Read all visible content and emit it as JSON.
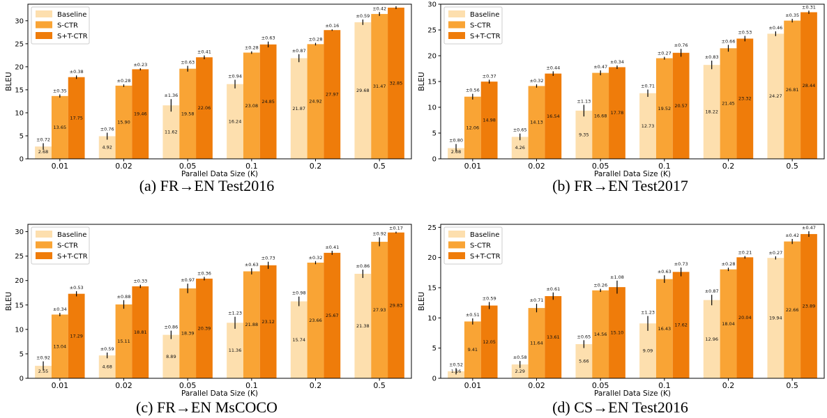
{
  "colors": {
    "Baseline": "#fddfae",
    "S-CTR": "#f9a435",
    "S+T-CTR": "#ef7c0a"
  },
  "chart_data": [
    {
      "type": "bar",
      "caption": "(a) FR→EN Test2016",
      "xlabel": "Parallel Data Size (K)",
      "ylabel": "BLEU",
      "ylim": [
        0,
        33.6
      ],
      "yticks": [
        0,
        5,
        10,
        15,
        20,
        25,
        30
      ],
      "categories": [
        "0.01",
        "0.02",
        "0.05",
        "0.1",
        "0.2",
        "0.5"
      ],
      "legend_position": "top-left",
      "series": [
        {
          "name": "Baseline",
          "values": [
            2.68,
            4.92,
            11.62,
            16.24,
            21.87,
            29.68
          ],
          "errors": [
            0.72,
            0.76,
            1.36,
            0.94,
            0.87,
            0.59
          ],
          "value_labels": [
            "2.68",
            "4.92",
            "11.62",
            "16.24",
            "21.87",
            "29.68"
          ],
          "error_labels": [
            "±0.72",
            "±0.76",
            "±1.36",
            "±0.94",
            "±0.87",
            "±0.59"
          ]
        },
        {
          "name": "S-CTR",
          "values": [
            13.65,
            15.9,
            19.58,
            23.08,
            24.92,
            31.47
          ],
          "errors": [
            0.35,
            0.28,
            0.63,
            0.28,
            0.28,
            0.42
          ],
          "value_labels": [
            "13.65",
            "15.90",
            "19.58",
            "23.08",
            "24.92",
            "31.47"
          ],
          "error_labels": [
            "±0.35",
            "±0.28",
            "±0.63",
            "±0.28",
            "±0.28",
            "±0.42"
          ]
        },
        {
          "name": "S+T-CTR",
          "values": [
            17.75,
            19.46,
            22.06,
            24.85,
            27.97,
            32.85
          ],
          "errors": [
            0.38,
            0.23,
            0.41,
            0.63,
            0.16,
            0.3
          ],
          "value_labels": [
            "17.75",
            "19.46",
            "22.06",
            "24.85",
            "27.97",
            "32.85"
          ],
          "error_labels": [
            "±0.38",
            "±0.23",
            "±0.41",
            "±0.63",
            "±0.16",
            "±0.30"
          ]
        }
      ]
    },
    {
      "type": "bar",
      "caption": "(b) FR→EN Test2017",
      "xlabel": "Parallel Data Size (K)",
      "ylabel": "BLEU",
      "ylim": [
        0,
        30
      ],
      "yticks": [
        0,
        5,
        10,
        15,
        20,
        25,
        30
      ],
      "categories": [
        "0.01",
        "0.02",
        "0.05",
        "0.1",
        "0.2",
        "0.5"
      ],
      "legend_position": "top-left",
      "series": [
        {
          "name": "Baseline",
          "values": [
            2.08,
            4.26,
            9.35,
            12.73,
            18.22,
            24.27
          ],
          "errors": [
            0.8,
            0.65,
            1.13,
            0.71,
            0.83,
            0.46
          ],
          "value_labels": [
            "2.08",
            "4.26",
            "9.35",
            "12.73",
            "18.22",
            "24.27"
          ],
          "error_labels": [
            "±0.80",
            "±0.65",
            "±1.13",
            "±0.71",
            "±0.83",
            "±0.46"
          ]
        },
        {
          "name": "S-CTR",
          "values": [
            12.06,
            14.13,
            16.68,
            19.52,
            21.45,
            26.81
          ],
          "errors": [
            0.56,
            0.32,
            0.47,
            0.27,
            0.66,
            0.35
          ],
          "value_labels": [
            "12.06",
            "14.13",
            "16.68",
            "19.52",
            "21.45",
            "26.81"
          ],
          "error_labels": [
            "±0.56",
            "±0.32",
            "±0.47",
            "±0.27",
            "±0.66",
            "±0.35"
          ]
        },
        {
          "name": "S+T-CTR",
          "values": [
            14.98,
            16.54,
            17.78,
            20.57,
            23.32,
            28.44
          ],
          "errors": [
            0.37,
            0.44,
            0.34,
            0.76,
            0.53,
            0.31
          ],
          "value_labels": [
            "14.98",
            "16.54",
            "17.78",
            "20.57",
            "23.32",
            "28.44"
          ],
          "error_labels": [
            "±0.37",
            "±0.44",
            "±0.34",
            "±0.76",
            "±0.53",
            "±0.31"
          ]
        }
      ]
    },
    {
      "type": "bar",
      "caption": "(c) FR→EN MsCOCO",
      "xlabel": "Parallel Data Size (K)",
      "ylabel": "BLEU",
      "ylim": [
        0,
        31.5
      ],
      "yticks": [
        0,
        5,
        10,
        15,
        20,
        25,
        30
      ],
      "categories": [
        "0.01",
        "0.02",
        "0.05",
        "0.1",
        "0.2",
        "0.5"
      ],
      "legend_position": "top-left",
      "series": [
        {
          "name": "Baseline",
          "values": [
            2.55,
            4.68,
            8.89,
            11.36,
            15.74,
            21.38
          ],
          "errors": [
            0.92,
            0.59,
            0.86,
            1.23,
            0.98,
            0.86
          ],
          "value_labels": [
            "2.55",
            "4.68",
            "8.89",
            "11.36",
            "15.74",
            "21.38"
          ],
          "error_labels": [
            "±0.92",
            "±0.59",
            "±0.86",
            "±1.23",
            "±0.98",
            "±0.86"
          ]
        },
        {
          "name": "S-CTR",
          "values": [
            13.04,
            15.11,
            18.39,
            21.88,
            23.66,
            27.93
          ],
          "errors": [
            0.34,
            0.88,
            0.97,
            0.63,
            0.32,
            0.92
          ],
          "value_labels": [
            "13.04",
            "15.11",
            "18.39",
            "21.88",
            "23.66",
            "27.93"
          ],
          "error_labels": [
            "±0.34",
            "±0.88",
            "±0.97",
            "±0.63",
            "±0.32",
            "±0.92"
          ]
        },
        {
          "name": "S+T-CTR",
          "values": [
            17.29,
            18.81,
            20.39,
            23.12,
            25.67,
            29.83
          ],
          "errors": [
            0.53,
            0.33,
            0.36,
            0.73,
            0.41,
            0.17
          ],
          "value_labels": [
            "17.29",
            "18.81",
            "20.39",
            "23.12",
            "25.67",
            "29.83"
          ],
          "error_labels": [
            "±0.53",
            "±0.33",
            "±0.36",
            "±0.73",
            "±0.41",
            "±0.17"
          ]
        }
      ]
    },
    {
      "type": "bar",
      "caption": "(d) CS→EN Test2016",
      "xlabel": "Parallel Data Size (K)",
      "ylabel": "BLEU",
      "ylim": [
        0,
        25.5
      ],
      "yticks": [
        0,
        5,
        10,
        15,
        20,
        25
      ],
      "categories": [
        "0.01",
        "0.02",
        "0.05",
        "0.1",
        "0.2",
        "0.5"
      ],
      "legend_position": "top-left",
      "series": [
        {
          "name": "Baseline",
          "values": [
            1.16,
            2.29,
            5.66,
            9.09,
            12.96,
            19.94
          ],
          "errors": [
            0.52,
            0.58,
            0.65,
            1.23,
            0.87,
            0.27
          ],
          "value_labels": [
            "1.16",
            "2.29",
            "5.66",
            "9.09",
            "12.96",
            "19.94"
          ],
          "error_labels": [
            "±0.52",
            "±0.58",
            "±0.65",
            "±1.23",
            "±0.87",
            "±0.27"
          ]
        },
        {
          "name": "S-CTR",
          "values": [
            9.41,
            11.64,
            14.56,
            16.43,
            18.04,
            22.66
          ],
          "errors": [
            0.51,
            0.71,
            0.26,
            0.63,
            0.28,
            0.42
          ],
          "value_labels": [
            "9.41",
            "11.64",
            "14.56",
            "16.43",
            "18.04",
            "22.66"
          ],
          "error_labels": [
            "±0.51",
            "±0.71",
            "±0.26",
            "±0.63",
            "±0.28",
            "±0.42"
          ]
        },
        {
          "name": "S+T-CTR",
          "values": [
            12.05,
            13.61,
            15.1,
            17.62,
            20.04,
            23.89
          ],
          "errors": [
            0.59,
            0.61,
            1.08,
            0.73,
            0.21,
            0.47
          ],
          "value_labels": [
            "12.05",
            "13.61",
            "15.10",
            "17.62",
            "20.04",
            "23.89"
          ],
          "error_labels": [
            "±0.59",
            "±0.61",
            "±1.08",
            "±0.73",
            "±0.21",
            "±0.47"
          ]
        }
      ]
    }
  ]
}
